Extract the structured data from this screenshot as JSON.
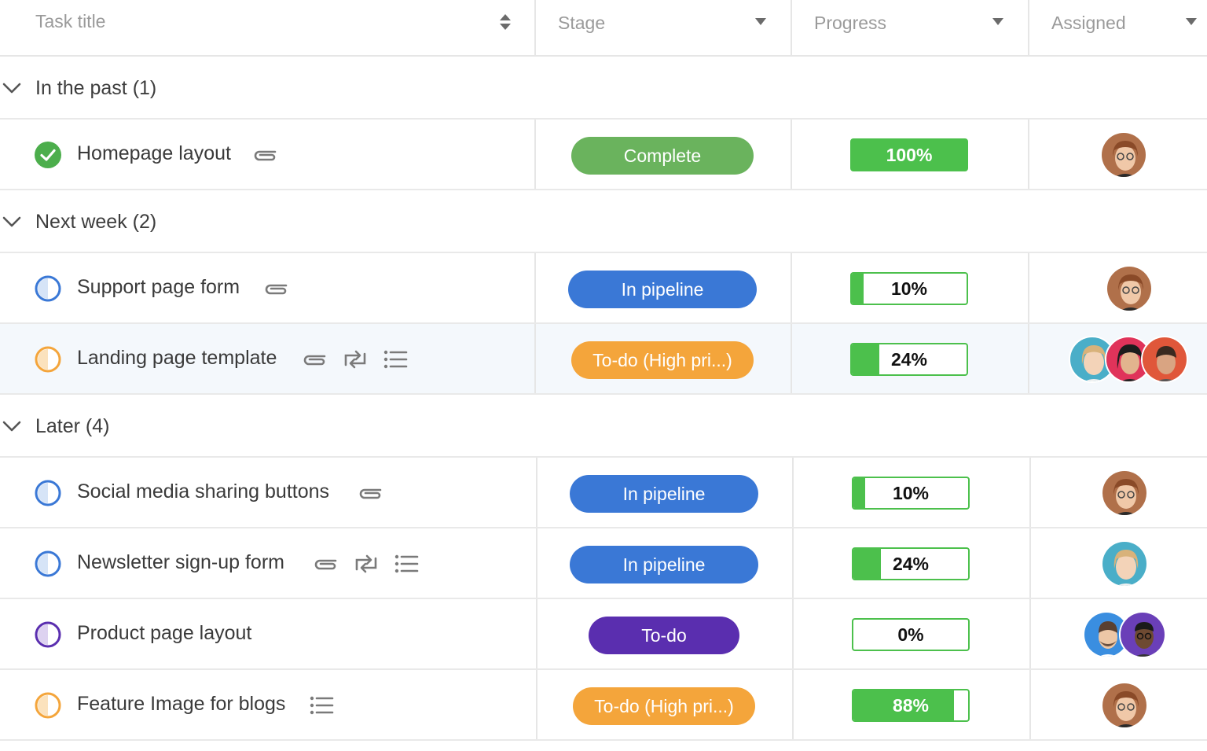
{
  "columns": {
    "task_title": "Task title",
    "stage": "Stage",
    "progress": "Progress",
    "assigned": "Assigned"
  },
  "groups": [
    {
      "label": "In the past (1)"
    },
    {
      "label": "Next week (2)"
    },
    {
      "label": "Later (4)"
    }
  ],
  "tasks": [
    {
      "name": "Homepage layout",
      "status": "complete",
      "stage": "Complete",
      "progress_label": "100%",
      "progress": 100,
      "icons": [
        "paperclip-icon"
      ],
      "assignees": [
        "avatar-woman-glasses"
      ]
    },
    {
      "name": "Support page form",
      "status": "in-pipeline",
      "stage": "In pipeline",
      "progress_label": "10%",
      "progress": 10,
      "icons": [
        "paperclip-icon"
      ],
      "assignees": [
        "avatar-woman-glasses"
      ]
    },
    {
      "name": "Landing page template",
      "status": "high-priority",
      "stage": "To-do (High pri...)",
      "progress_label": "24%",
      "progress": 24,
      "icons": [
        "paperclip-icon",
        "recurring-icon",
        "checklist-icon"
      ],
      "assignees": [
        "avatar-woman-blonde",
        "avatar-woman-dark-hair",
        "avatar-man-red"
      ]
    },
    {
      "name": "Social media sharing buttons",
      "status": "in-pipeline",
      "stage": "In pipeline",
      "progress_label": "10%",
      "progress": 10,
      "icons": [
        "paperclip-icon"
      ],
      "assignees": [
        "avatar-woman-glasses"
      ]
    },
    {
      "name": "Newsletter sign-up form",
      "status": "in-pipeline",
      "stage": "In pipeline",
      "progress_label": "24%",
      "progress": 24,
      "icons": [
        "paperclip-icon",
        "recurring-icon",
        "checklist-icon"
      ],
      "assignees": [
        "avatar-woman-blonde"
      ]
    },
    {
      "name": "Product page layout",
      "status": "todo",
      "stage": "To-do",
      "progress_label": "0%",
      "progress": 0,
      "icons": [],
      "assignees": [
        "avatar-man-beard",
        "avatar-man-dark"
      ]
    },
    {
      "name": "Feature Image for blogs",
      "status": "high-priority",
      "stage": "To-do (High pri...)",
      "progress_label": "88%",
      "progress": 88,
      "icons": [
        "checklist-icon"
      ],
      "assignees": [
        "avatar-woman-glasses"
      ]
    }
  ],
  "colors": {
    "complete": "#6ab35d",
    "in_pipeline": "#3a78d6",
    "high_priority": "#f4a53b",
    "todo": "#5a2eaf",
    "progress_green": "#4cc04c"
  }
}
